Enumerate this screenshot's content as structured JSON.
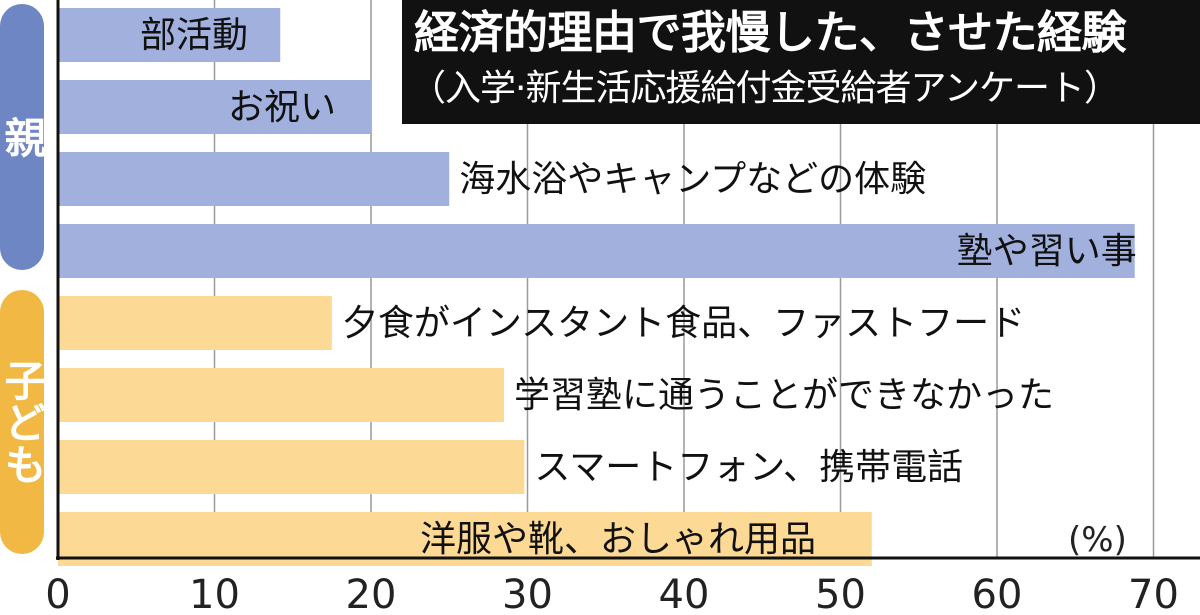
{
  "title": "経済的理由で我慢した、させた経験",
  "subtitle": "（入学·新生活応援給付金受給者アンケート）",
  "groups": {
    "parent": "親",
    "child": "子ども"
  },
  "unit_label": "(%)",
  "colors": {
    "parent_bar": "#a2b0dd",
    "child_bar": "#fdd996",
    "parent_group": "#6f86c4",
    "child_group": "#f2b844",
    "title_bg": "#111111"
  },
  "chart_data": {
    "type": "bar",
    "orientation": "horizontal",
    "categories": [
      "部活動",
      "お祝い",
      "海水浴やキャンプなどの体験",
      "塾や習い事",
      "夕食がインスタント食品、ファストフード",
      "学習塾に通うことができなかった",
      "スマートフォン、携帯電話",
      "洋服や靴、おしゃれ用品"
    ],
    "groups": [
      "親",
      "親",
      "親",
      "親",
      "子ども",
      "子ども",
      "子ども",
      "子ども"
    ],
    "values": [
      14.2,
      20.0,
      25.0,
      68.8,
      17.5,
      28.5,
      29.8,
      52.0
    ],
    "xlim": [
      0,
      70
    ],
    "xticks": [
      "0",
      "10",
      "20",
      "30",
      "40",
      "50",
      "60",
      "70"
    ],
    "xlabel": "(%)",
    "ylabel": "",
    "grid": true,
    "title": "経済的理由で我慢した、させた経験"
  }
}
